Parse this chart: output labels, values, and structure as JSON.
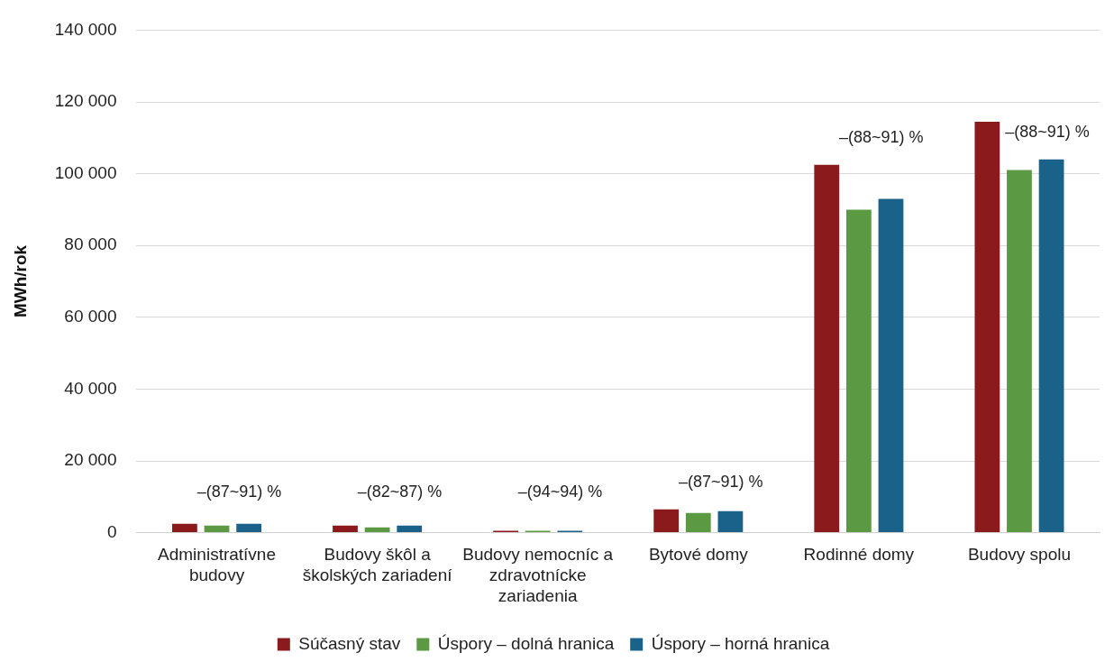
{
  "chart_data": {
    "type": "bar",
    "ylabel": "MWh/rok",
    "categories": [
      "Administratívne budovy",
      "Budovy škôl a školských zariadení",
      "Budovy nemocníc a zdravotnícke zariadenia",
      "Bytové domy",
      "Rodinné domy",
      "Budovy spolu"
    ],
    "series": [
      {
        "name": "Súčasný stav",
        "color": "#8b1a1c",
        "values": [
          2500,
          2000,
          500,
          6500,
          102500,
          114500
        ]
      },
      {
        "name": "Úspory – dolná hranica",
        "color": "#5b9a43",
        "values": [
          2000,
          1500,
          500,
          5500,
          90000,
          101000
        ]
      },
      {
        "name": "Úspory – horná hranica",
        "color": "#1b628a",
        "values": [
          2500,
          2000,
          500,
          6000,
          93000,
          104000
        ]
      }
    ],
    "ylim": [
      0,
      140000
    ],
    "yticks": [
      {
        "value": 0,
        "label": "0"
      },
      {
        "value": 20000,
        "label": "20 000"
      },
      {
        "value": 40000,
        "label": "40 000"
      },
      {
        "value": 60000,
        "label": "60 000"
      },
      {
        "value": 80000,
        "label": "80 000"
      },
      {
        "value": 100000,
        "label": "100 000"
      },
      {
        "value": 120000,
        "label": "120 000"
      },
      {
        "value": 140000,
        "label": "140 000"
      }
    ],
    "grid": "y",
    "legend": "bottom",
    "annotations": [
      "–(87~91) %",
      "–(82~87) %",
      "–(94~94) %",
      "–(87~91) %",
      "–(88~91) %",
      "–(88~91) %"
    ]
  }
}
